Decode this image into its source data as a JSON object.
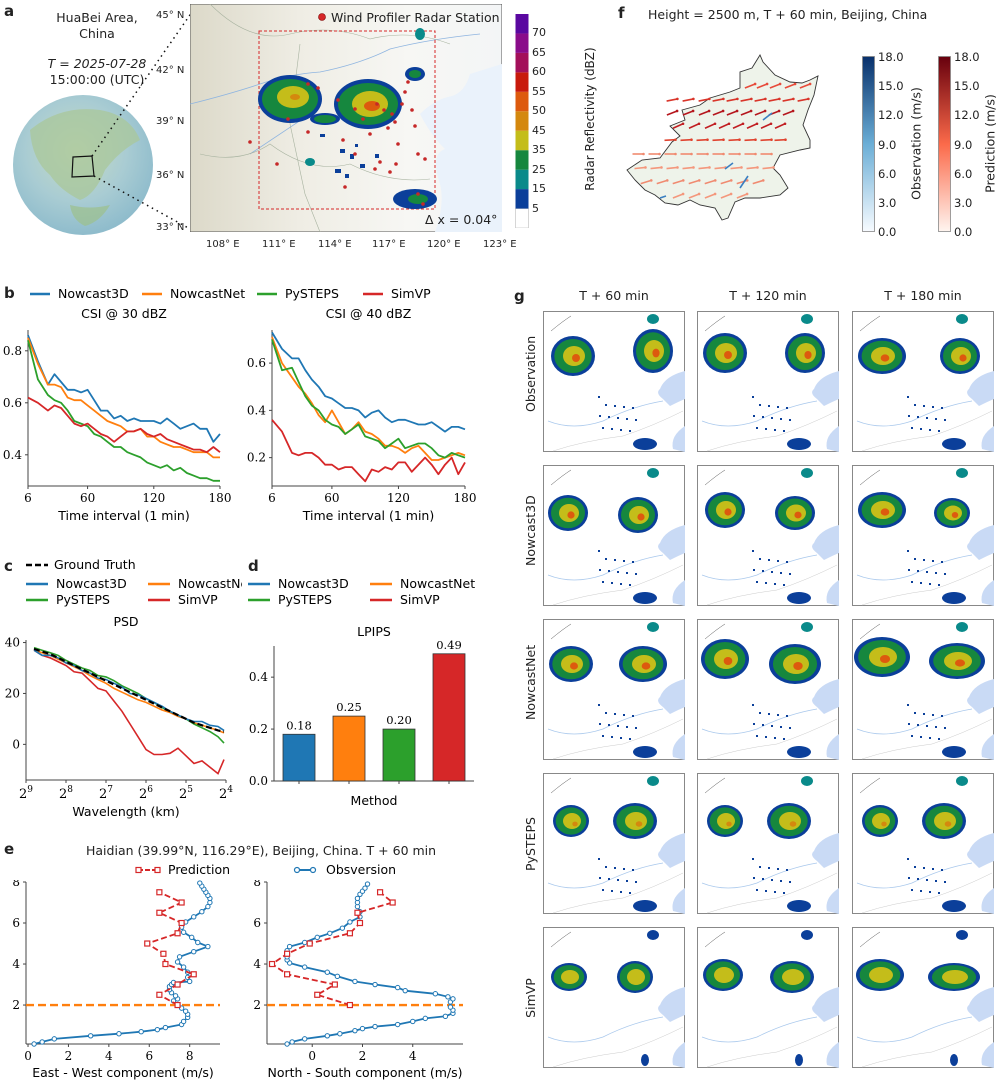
{
  "panel_a": {
    "letter": "a",
    "area_line1": "HuaBei Area,",
    "area_line2": "China",
    "time_line1": "T = 2025-07-28",
    "time_line2": "15:00:00 (UTC)",
    "legend_station": "Wind Profiler Radar Station",
    "resolution": "Δ x = 0.04°",
    "lat_ticks": [
      "45° N",
      "42° N",
      "39° N",
      "36° N",
      "33° N"
    ],
    "lon_ticks": [
      "108° E",
      "111° E",
      "114° E",
      "117° E",
      "120° E",
      "123° E"
    ],
    "colorbar_label": "Radar Reflectivity (dBZ)",
    "colorbar_ticks": [
      "70",
      "65",
      "60",
      "55",
      "50",
      "45",
      "35",
      "25",
      "15",
      "5"
    ],
    "colorbar_colors": [
      "#ffffff",
      "#0b3f9a",
      "#0a8a8a",
      "#16873e",
      "#c4bd1a",
      "#d4880e",
      "#dd5a0e",
      "#c81a0c",
      "#a3105a",
      "#8a0c8a",
      "#5a08a0"
    ]
  },
  "panel_f": {
    "letter": "f",
    "title": "Height = 2500 m, T + 60 min, Beijing, China",
    "obs_label": "Observation (m/s)",
    "pred_label": "Prediction (m/s)",
    "ticks": [
      "18.0",
      "15.0",
      "12.0",
      "9.0",
      "6.0",
      "3.0",
      "0.0"
    ]
  },
  "panel_b": {
    "letter": "b",
    "legend": [
      "Nowcast3D",
      "NowcastNet",
      "PySTEPS",
      "SimVP"
    ]
  },
  "panel_c": {
    "letter": "c",
    "legend_gt": "Ground Truth",
    "legend": [
      "Nowcast3D",
      "NowcastNet",
      "PySTEPS",
      "SimVP"
    ]
  },
  "panel_d": {
    "letter": "d",
    "legend": [
      "Nowcast3D",
      "NowcastNet",
      "PySTEPS",
      "SimVP"
    ]
  },
  "panel_e": {
    "letter": "e",
    "title": "Haidian (39.99°N, 116.29°E), Beijing, China. T + 60 min",
    "legend_pred": "Prediction",
    "legend_obs": "Obsversion"
  },
  "panel_g": {
    "letter": "g",
    "columns": [
      "T + 60 min",
      "T + 120 min",
      "T + 180 min"
    ],
    "rows": [
      "Observation",
      "Nowcast3D",
      "NowcastNet",
      "PySTEPS",
      "SimVP"
    ]
  },
  "colors": {
    "Nowcast3D": "#1f77b4",
    "NowcastNet": "#ff7f0e",
    "PySTEPS": "#2ca02c",
    "SimVP": "#d62728",
    "GroundTruth": "#000000",
    "reference_line": "#ff7f0e"
  },
  "chart_data": [
    {
      "id": "csi30",
      "type": "line",
      "title": "CSI @ 30 dBZ",
      "xlabel": "Time interval (1 min)",
      "ylabel": "",
      "xlim": [
        6,
        180
      ],
      "ylim": [
        0.28,
        0.88
      ],
      "xticks": [
        6,
        60,
        120,
        180
      ],
      "yticks": [
        0.4,
        0.6,
        0.8
      ],
      "x": [
        6,
        15,
        24,
        30,
        36,
        42,
        48,
        54,
        60,
        66,
        72,
        78,
        84,
        90,
        96,
        102,
        108,
        114,
        120,
        126,
        132,
        138,
        144,
        150,
        156,
        162,
        168,
        174,
        180
      ],
      "series": [
        {
          "name": "Nowcast3D",
          "values": [
            0.86,
            0.76,
            0.67,
            0.71,
            0.68,
            0.65,
            0.65,
            0.64,
            0.65,
            0.61,
            0.57,
            0.57,
            0.54,
            0.55,
            0.53,
            0.54,
            0.53,
            0.53,
            0.53,
            0.52,
            0.54,
            0.52,
            0.5,
            0.51,
            0.52,
            0.5,
            0.5,
            0.45,
            0.48
          ]
        },
        {
          "name": "NowcastNet",
          "values": [
            0.85,
            0.75,
            0.67,
            0.67,
            0.66,
            0.62,
            0.61,
            0.61,
            0.59,
            0.57,
            0.55,
            0.53,
            0.52,
            0.51,
            0.49,
            0.49,
            0.5,
            0.47,
            0.47,
            0.45,
            0.44,
            0.43,
            0.43,
            0.42,
            0.41,
            0.41,
            0.41,
            0.39,
            0.39
          ]
        },
        {
          "name": "PySTEPS",
          "values": [
            0.84,
            0.69,
            0.63,
            0.61,
            0.6,
            0.57,
            0.53,
            0.52,
            0.51,
            0.48,
            0.47,
            0.45,
            0.43,
            0.43,
            0.41,
            0.4,
            0.39,
            0.37,
            0.36,
            0.35,
            0.36,
            0.34,
            0.35,
            0.33,
            0.32,
            0.31,
            0.31,
            0.3,
            0.3
          ]
        },
        {
          "name": "SimVP",
          "values": [
            0.62,
            0.6,
            0.57,
            0.59,
            0.58,
            0.55,
            0.52,
            0.51,
            0.52,
            0.5,
            0.48,
            0.47,
            0.45,
            0.47,
            0.49,
            0.49,
            0.5,
            0.48,
            0.47,
            0.48,
            0.46,
            0.45,
            0.44,
            0.43,
            0.42,
            0.42,
            0.41,
            0.43,
            0.41
          ]
        }
      ]
    },
    {
      "id": "csi40",
      "type": "line",
      "title": "CSI @ 40 dBZ",
      "xlabel": "Time interval (1 min)",
      "ylabel": "",
      "xlim": [
        6,
        180
      ],
      "ylim": [
        0.08,
        0.74
      ],
      "xticks": [
        6,
        60,
        120,
        180
      ],
      "yticks": [
        0.2,
        0.4,
        0.6
      ],
      "x": [
        6,
        15,
        24,
        30,
        36,
        42,
        48,
        54,
        60,
        66,
        72,
        78,
        84,
        90,
        96,
        102,
        108,
        114,
        120,
        126,
        132,
        138,
        144,
        150,
        156,
        162,
        168,
        174,
        180
      ],
      "series": [
        {
          "name": "Nowcast3D",
          "values": [
            0.73,
            0.66,
            0.62,
            0.62,
            0.57,
            0.53,
            0.5,
            0.46,
            0.45,
            0.43,
            0.41,
            0.41,
            0.4,
            0.37,
            0.39,
            0.4,
            0.37,
            0.35,
            0.36,
            0.36,
            0.35,
            0.34,
            0.34,
            0.35,
            0.33,
            0.31,
            0.33,
            0.33,
            0.32
          ]
        },
        {
          "name": "NowcastNet",
          "values": [
            0.71,
            0.6,
            0.54,
            0.5,
            0.47,
            0.43,
            0.38,
            0.35,
            0.4,
            0.35,
            0.3,
            0.32,
            0.35,
            0.31,
            0.3,
            0.28,
            0.25,
            0.25,
            0.24,
            0.22,
            0.24,
            0.25,
            0.22,
            0.19,
            0.19,
            0.2,
            0.21,
            0.22,
            0.21
          ]
        },
        {
          "name": "PySTEPS",
          "values": [
            0.7,
            0.57,
            0.58,
            0.52,
            0.46,
            0.42,
            0.4,
            0.36,
            0.34,
            0.33,
            0.3,
            0.32,
            0.34,
            0.29,
            0.28,
            0.27,
            0.24,
            0.26,
            0.28,
            0.24,
            0.25,
            0.26,
            0.26,
            0.24,
            0.21,
            0.2,
            0.22,
            0.21,
            0.2
          ]
        },
        {
          "name": "SimVP",
          "values": [
            0.36,
            0.31,
            0.22,
            0.21,
            0.22,
            0.22,
            0.2,
            0.17,
            0.17,
            0.15,
            0.16,
            0.16,
            0.13,
            0.1,
            0.15,
            0.14,
            0.16,
            0.15,
            0.18,
            0.18,
            0.14,
            0.17,
            0.2,
            0.17,
            0.13,
            0.17,
            0.2,
            0.13,
            0.18
          ]
        }
      ]
    },
    {
      "id": "psd",
      "type": "line",
      "title": "PSD",
      "xlabel": "Wavelength (km)",
      "ylabel": "",
      "x_scale": "log2-reversed",
      "xlim_log2": [
        9,
        4
      ],
      "ylim": [
        -14,
        41
      ],
      "xticks": [
        "2^9",
        "2^8",
        "2^7",
        "2^6",
        "2^5",
        "2^4"
      ],
      "yticks": [
        0,
        20,
        40
      ],
      "x_log2": [
        8.8,
        8.6,
        8.4,
        8.2,
        8.0,
        7.8,
        7.6,
        7.4,
        7.2,
        7.0,
        6.8,
        6.6,
        6.4,
        6.2,
        6.0,
        5.8,
        5.6,
        5.4,
        5.2,
        5.0,
        4.8,
        4.6,
        4.4,
        4.2,
        4.05
      ],
      "series": [
        {
          "name": "Ground Truth",
          "values": [
            37.5,
            36.5,
            35.5,
            34.0,
            32.5,
            31.0,
            29.5,
            28.0,
            26.5,
            25.0,
            23.5,
            22.0,
            20.5,
            19.0,
            17.5,
            16.0,
            14.5,
            13.0,
            11.5,
            10.0,
            8.5,
            7.5,
            6.5,
            5.5,
            5.0
          ]
        },
        {
          "name": "Nowcast3D",
          "values": [
            37.0,
            35.0,
            35.0,
            34.0,
            32.0,
            31.0,
            29.0,
            28.0,
            26.0,
            25.5,
            24.0,
            22.5,
            20.0,
            19.5,
            18.0,
            16.5,
            15.0,
            13.0,
            11.5,
            10.0,
            9.0,
            9.0,
            7.5,
            7.0,
            5.5
          ]
        },
        {
          "name": "NowcastNet",
          "values": [
            37.0,
            36.0,
            35.0,
            33.5,
            32.0,
            30.5,
            29.0,
            27.0,
            25.5,
            24.0,
            22.0,
            20.5,
            19.0,
            17.5,
            16.5,
            15.0,
            13.5,
            12.5,
            11.0,
            10.0,
            8.5,
            7.5,
            6.5,
            5.5,
            4.5
          ]
        },
        {
          "name": "PySTEPS",
          "values": [
            38.0,
            37.0,
            36.0,
            35.0,
            33.0,
            31.5,
            30.0,
            29.0,
            27.0,
            26.5,
            25.0,
            23.0,
            21.5,
            20.0,
            18.0,
            16.5,
            14.5,
            13.0,
            11.5,
            10.0,
            8.0,
            6.5,
            5.0,
            3.0,
            0.5
          ]
        },
        {
          "name": "SimVP",
          "values": [
            37.0,
            35.0,
            34.0,
            32.5,
            31.0,
            28.5,
            28.0,
            25.0,
            22.0,
            21.0,
            17.0,
            13.0,
            8.0,
            3.0,
            -2.0,
            -4.0,
            -4.0,
            -3.5,
            -1.5,
            -4.5,
            -7.5,
            -6.5,
            -9.0,
            -11.5,
            -6.0
          ]
        }
      ]
    },
    {
      "id": "lpips",
      "type": "bar",
      "title": "LPIPS",
      "xlabel": "Method",
      "ylabel": "",
      "ylim": [
        0.0,
        0.52
      ],
      "yticks": [
        0.0,
        0.2,
        0.4
      ],
      "categories": [
        "Nowcast3D",
        "NowcastNet",
        "PySTEPS",
        "SimVP"
      ],
      "values": [
        0.18,
        0.25,
        0.2,
        0.49
      ],
      "data_labels": [
        "0.18",
        "0.25",
        "0.20",
        "0.49"
      ]
    },
    {
      "id": "wind_ew",
      "type": "line",
      "title": "",
      "xlabel": "East - West  component (m/s)",
      "ylabel": "",
      "xlim": [
        -0.1,
        9.5
      ],
      "ylim": [
        0.1,
        8.0
      ],
      "xticks": [
        0,
        2,
        4,
        6,
        8
      ],
      "yticks": [
        2,
        4,
        6,
        8
      ],
      "reference_y": 2.0,
      "series": [
        {
          "name": "Obsversion",
          "x": [
            0.3,
            0.7,
            1.3,
            3.1,
            4.5,
            5.6,
            6.4,
            6.8,
            7.6,
            7.7,
            7.9,
            7.9,
            7.8,
            7.6,
            7.4,
            7.2,
            7.4,
            7.3,
            7.1,
            7.0,
            7.0,
            7.1,
            7.2,
            8.0,
            7.9,
            7.9,
            7.7,
            7.4,
            7.5,
            8.2,
            8.9,
            8.4,
            8.1,
            7.7,
            7.6,
            7.8,
            8.2,
            8.6,
            8.9,
            9.0,
            9.0,
            8.9,
            8.8,
            8.7,
            8.6,
            8.5
          ],
          "y": [
            0.1,
            0.2,
            0.35,
            0.5,
            0.6,
            0.7,
            0.8,
            0.9,
            1.05,
            1.2,
            1.4,
            1.55,
            1.7,
            1.85,
            2.0,
            2.2,
            2.3,
            2.45,
            2.6,
            2.75,
            2.9,
            3.0,
            3.1,
            3.15,
            3.35,
            3.6,
            3.85,
            4.1,
            4.35,
            4.6,
            4.85,
            5.05,
            5.3,
            5.55,
            5.8,
            6.05,
            6.3,
            6.55,
            6.8,
            7.0,
            7.2,
            7.35,
            7.5,
            7.65,
            7.8,
            7.95
          ]
        },
        {
          "name": "Prediction",
          "x": [
            7.4,
            6.5,
            7.4,
            8.2,
            6.8,
            6.7,
            5.9,
            7.4,
            7.6,
            6.5,
            7.6,
            6.5
          ],
          "y": [
            2.0,
            2.5,
            3.0,
            3.5,
            4.0,
            4.5,
            5.0,
            5.5,
            6.0,
            6.5,
            7.0,
            7.5
          ]
        }
      ]
    },
    {
      "id": "wind_ns",
      "type": "line",
      "title": "",
      "xlabel": "North - South  component (m/s)",
      "ylabel": "",
      "xlim": [
        -1.8,
        6.0
      ],
      "ylim": [
        0.1,
        8.0
      ],
      "xticks": [
        0,
        2,
        4
      ],
      "yticks": [
        2,
        4,
        6,
        8
      ],
      "reference_y": 2.0,
      "series": [
        {
          "name": "Obsversion",
          "x": [
            -1.0,
            -0.8,
            -0.3,
            0.6,
            1.1,
            1.7,
            2.0,
            2.5,
            3.4,
            4.0,
            4.5,
            5.3,
            5.6,
            5.6,
            5.5,
            5.5,
            5.6,
            5.4,
            4.9,
            3.7,
            3.4,
            2.5,
            1.7,
            1.0,
            0.6,
            -0.3,
            -0.9,
            -1.0,
            -1.0,
            -1.0,
            -1.0,
            -0.9,
            -0.3,
            0.2,
            0.7,
            1.2,
            1.5,
            1.9,
            1.9,
            1.8,
            1.8,
            1.8,
            1.9,
            2.0,
            2.1,
            2.2
          ],
          "y": [
            0.1,
            0.2,
            0.35,
            0.5,
            0.6,
            0.75,
            0.85,
            0.95,
            1.05,
            1.2,
            1.35,
            1.45,
            1.6,
            1.75,
            1.9,
            2.15,
            2.3,
            2.4,
            2.55,
            2.7,
            2.85,
            3.0,
            3.15,
            3.4,
            3.6,
            3.85,
            4.05,
            4.2,
            4.35,
            4.5,
            4.65,
            4.85,
            5.05,
            5.3,
            5.5,
            5.75,
            6.05,
            6.3,
            6.55,
            6.8,
            7.0,
            7.2,
            7.4,
            7.55,
            7.7,
            7.9
          ]
        },
        {
          "name": "Prediction",
          "x": [
            1.5,
            0.2,
            0.9,
            -1.0,
            -1.6,
            -1.0,
            -0.1,
            1.5,
            1.9,
            1.8,
            3.2,
            2.7
          ],
          "y": [
            2.0,
            2.5,
            3.0,
            3.5,
            4.0,
            4.5,
            5.0,
            5.5,
            6.0,
            6.5,
            7.0,
            7.5
          ]
        }
      ]
    }
  ]
}
